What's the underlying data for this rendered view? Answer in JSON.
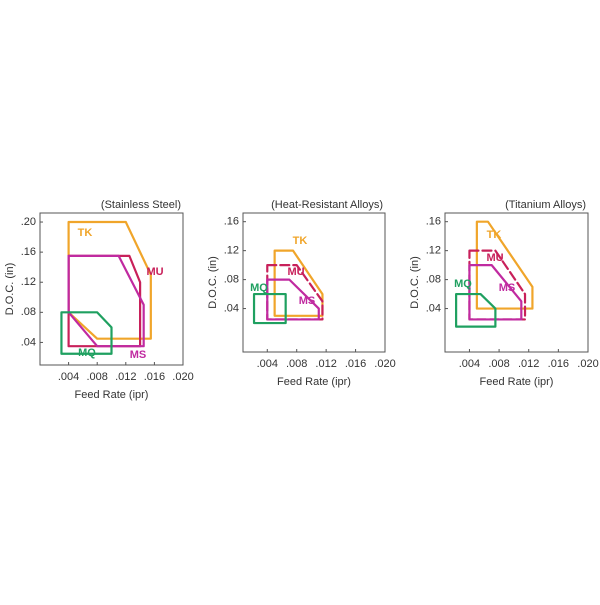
{
  "chart_data": [
    {
      "type": "region",
      "title": "(Stainless Steel)",
      "xlabel": "Feed Rate (ipr)",
      "ylabel": "D.O.C. (in)",
      "xlim": [
        0,
        0.02
      ],
      "ylim": [
        0.01,
        0.212
      ],
      "xticks": [
        {
          "value": 0.004,
          "label": ".004"
        },
        {
          "value": 0.008,
          "label": ".008"
        },
        {
          "value": 0.012,
          "label": ".012"
        },
        {
          "value": 0.016,
          "label": ".016"
        },
        {
          "value": 0.02,
          "label": ".020"
        }
      ],
      "yticks": [
        {
          "value": 0.04,
          "label": ".04"
        },
        {
          "value": 0.08,
          "label": ".08"
        },
        {
          "value": 0.12,
          "label": ".12"
        },
        {
          "value": 0.16,
          "label": ".16"
        },
        {
          "value": 0.2,
          "label": ".20"
        }
      ],
      "series": [
        {
          "name": "TK",
          "color": "#f0a52a",
          "dashed": false,
          "x": [
            0.004,
            0.012,
            0.0155,
            0.0155,
            0.008,
            0.004,
            0.004
          ],
          "y": [
            0.2,
            0.2,
            0.13,
            0.045,
            0.045,
            0.08,
            0.2
          ]
        },
        {
          "name": "MU",
          "color": "#c8205a",
          "dashed": false,
          "x": [
            0.004,
            0.0125,
            0.014,
            0.014,
            0.004,
            0.004
          ],
          "y": [
            0.155,
            0.155,
            0.12,
            0.035,
            0.035,
            0.155
          ]
        },
        {
          "name": "MS",
          "color": "#c02aa0",
          "dashed": false,
          "x": [
            0.004,
            0.011,
            0.0145,
            0.0145,
            0.008,
            0.004,
            0.004
          ],
          "y": [
            0.155,
            0.155,
            0.09,
            0.035,
            0.035,
            0.08,
            0.155
          ]
        },
        {
          "name": "MQ",
          "color": "#1fa060",
          "dashed": false,
          "x": [
            0.003,
            0.008,
            0.01,
            0.01,
            0.003,
            0.003
          ],
          "y": [
            0.08,
            0.08,
            0.06,
            0.025,
            0.025,
            0.08
          ]
        }
      ]
    },
    {
      "type": "region",
      "title": "(Heat-Resistant Alloys)",
      "xlabel": "Feed Rate (ipr)",
      "ylabel": "D.O.C. (in)",
      "xlim": [
        0.0007,
        0.02
      ],
      "ylim": [
        -0.02,
        0.172
      ],
      "xticks": [
        {
          "value": 0.004,
          "label": ".004"
        },
        {
          "value": 0.008,
          "label": ".008"
        },
        {
          "value": 0.012,
          "label": ".012"
        },
        {
          "value": 0.016,
          "label": ".016"
        },
        {
          "value": 0.02,
          "label": ".020"
        }
      ],
      "yticks": [
        {
          "value": 0.04,
          "label": ".04"
        },
        {
          "value": 0.08,
          "label": ".08"
        },
        {
          "value": 0.12,
          "label": ".12"
        },
        {
          "value": 0.16,
          "label": ".16"
        }
      ],
      "series": [
        {
          "name": "TK",
          "color": "#f0a52a",
          "dashed": false,
          "x": [
            0.005,
            0.0075,
            0.0115,
            0.0115,
            0.005,
            0.005
          ],
          "y": [
            0.12,
            0.12,
            0.06,
            0.03,
            0.03,
            0.12
          ]
        },
        {
          "name": "MU",
          "color": "#c8205a",
          "dashed": true,
          "x": [
            0.004,
            0.008,
            0.0115,
            0.0115,
            0.004,
            0.004
          ],
          "y": [
            0.1,
            0.1,
            0.05,
            0.025,
            0.025,
            0.1
          ]
        },
        {
          "name": "MS",
          "color": "#c02aa0",
          "dashed": false,
          "x": [
            0.004,
            0.007,
            0.011,
            0.011,
            0.004,
            0.004
          ],
          "y": [
            0.08,
            0.08,
            0.04,
            0.025,
            0.025,
            0.08
          ]
        },
        {
          "name": "MQ",
          "color": "#1fa060",
          "dashed": false,
          "x": [
            0.0022,
            0.0065,
            0.0065,
            0.0022,
            0.0022
          ],
          "y": [
            0.06,
            0.06,
            0.02,
            0.02,
            0.06
          ]
        }
      ]
    },
    {
      "type": "region",
      "title": "(Titanium Alloys)",
      "xlabel": "Feed Rate (ipr)",
      "ylabel": "D.O.C. (in)",
      "xlim": [
        0.0007,
        0.02
      ],
      "ylim": [
        -0.02,
        0.172
      ],
      "xticks": [
        {
          "value": 0.004,
          "label": ".004"
        },
        {
          "value": 0.008,
          "label": ".008"
        },
        {
          "value": 0.012,
          "label": ".012"
        },
        {
          "value": 0.016,
          "label": ".016"
        },
        {
          "value": 0.02,
          "label": ".020"
        }
      ],
      "yticks": [
        {
          "value": 0.04,
          "label": ".04"
        },
        {
          "value": 0.08,
          "label": ".08"
        },
        {
          "value": 0.12,
          "label": ".12"
        },
        {
          "value": 0.16,
          "label": ".16"
        }
      ],
      "series": [
        {
          "name": "TK",
          "color": "#f0a52a",
          "dashed": false,
          "x": [
            0.005,
            0.0065,
            0.0125,
            0.0125,
            0.005,
            0.005
          ],
          "y": [
            0.16,
            0.16,
            0.07,
            0.04,
            0.04,
            0.16
          ]
        },
        {
          "name": "MU",
          "color": "#c8205a",
          "dashed": true,
          "x": [
            0.004,
            0.0075,
            0.0115,
            0.0115,
            0.004,
            0.004
          ],
          "y": [
            0.12,
            0.12,
            0.06,
            0.025,
            0.025,
            0.12
          ]
        },
        {
          "name": "MS",
          "color": "#c02aa0",
          "dashed": false,
          "x": [
            0.004,
            0.007,
            0.011,
            0.011,
            0.004,
            0.004
          ],
          "y": [
            0.1,
            0.1,
            0.05,
            0.025,
            0.025,
            0.1
          ]
        },
        {
          "name": "MQ",
          "color": "#1fa060",
          "dashed": false,
          "x": [
            0.0022,
            0.0055,
            0.0075,
            0.0075,
            0.0022,
            0.0022
          ],
          "y": [
            0.06,
            0.06,
            0.04,
            0.015,
            0.015,
            0.06
          ]
        }
      ]
    }
  ]
}
